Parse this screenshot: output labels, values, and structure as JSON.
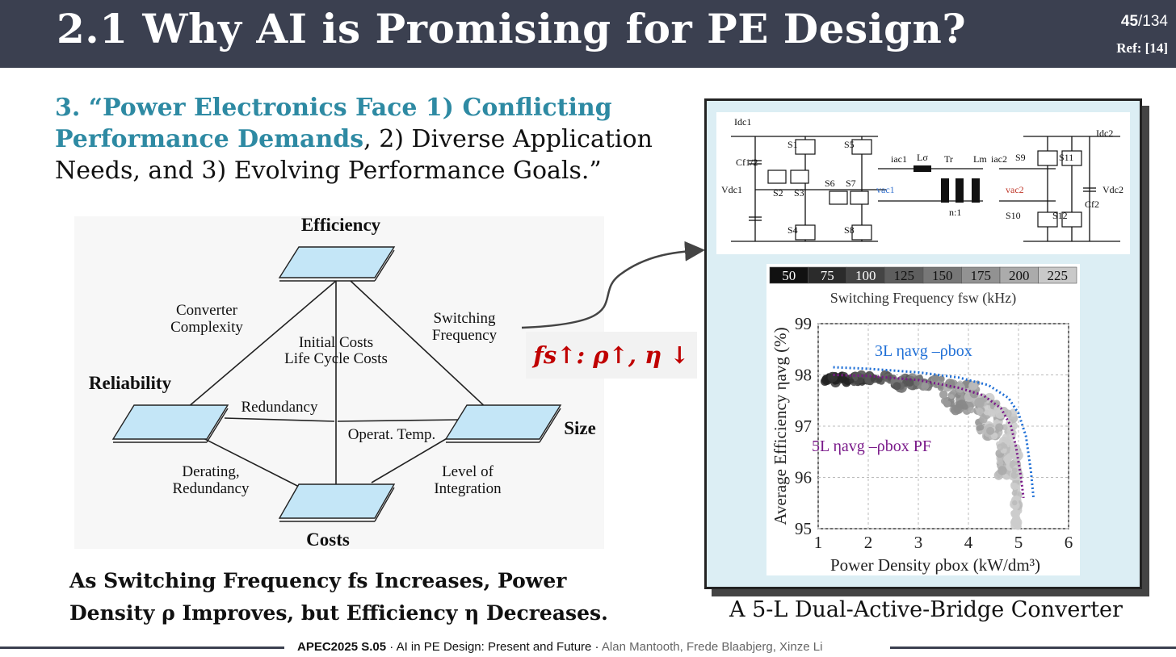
{
  "header": {
    "title": "2.1 Why AI is Promising for PE Design?",
    "page_current": "45",
    "page_total": "/134",
    "ref": "Ref: [14]"
  },
  "quote": {
    "highlight": "3. “Power Electronics Face 1) Conflicting Performance Demands",
    "rest": ", 2) Diverse Application Needs, and 3) Evolving Performance Goals.”"
  },
  "diagram": {
    "nodes": {
      "efficiency": "Efficiency",
      "reliability": "Reliability",
      "size": "Size",
      "costs": "Costs"
    },
    "edges": {
      "converter_complexity": "Converter Complexity",
      "switching_frequency": "Switching Frequency",
      "initial_costs": "Initial Costs",
      "life_cycle_costs": "Life Cycle Costs",
      "redundancy": "Redundancy",
      "operat_temp": "Operat. Temp.",
      "derating_redundancy": "Derating, Redundancy",
      "level_of_integration": "Level of Integration"
    }
  },
  "formula": "fs↑: ρ↑, η ↓",
  "conclusion": {
    "line1": "As Switching Frequency fs Increases, Power",
    "line2": "Density ρ Improves, but Efficiency η Decreases."
  },
  "circuit": {
    "labels": [
      "Idc1",
      "Cf1/2",
      "Vdc1",
      "S1",
      "S2",
      "S3",
      "S4",
      "S5",
      "S6",
      "S7",
      "iac1",
      "vac1",
      "Lσ",
      "Tr",
      "Lm",
      "n:1",
      "iac2",
      "vac2",
      "S9",
      "S10",
      "S11",
      "S12",
      "Idc2",
      "Vdc2",
      "Cf2"
    ]
  },
  "chart_data": {
    "type": "scatter",
    "colorbar": {
      "label": "Switching Frequency fsw (kHz)",
      "ticks": [
        "50",
        "75",
        "100",
        "125",
        "150",
        "175",
        "200",
        "225"
      ],
      "colors": [
        "#111111",
        "#2b2b2b",
        "#444444",
        "#5e5e5e",
        "#777777",
        "#929292",
        "#ababab",
        "#c9c9c9"
      ]
    },
    "xlabel": "Power Density ρbox (kW/dm³)",
    "ylabel": "Average Efficiency ηavg (%)",
    "xlim": [
      1,
      6
    ],
    "ylim": [
      95,
      99
    ],
    "xticks": [
      "1",
      "2",
      "3",
      "4",
      "5",
      "6"
    ],
    "yticks": [
      "95",
      "96",
      "97",
      "98",
      "99"
    ],
    "grid": true,
    "series": [
      {
        "name": "3L ηavg –ρbox",
        "style": "dotted",
        "color": "#1f6fd6",
        "x": [
          1.3,
          2.0,
          3.0,
          3.8,
          4.4,
          4.8,
          5.0,
          5.15,
          5.25,
          5.3
        ],
        "y": [
          98.15,
          98.12,
          98.05,
          97.95,
          97.8,
          97.55,
          97.25,
          96.8,
          96.1,
          95.6
        ]
      },
      {
        "name": "5L ηavg –ρbox PF",
        "style": "dotted",
        "color": "#7a1a8a",
        "x": [
          1.3,
          2.0,
          3.0,
          3.8,
          4.3,
          4.65,
          4.85,
          4.95,
          5.05,
          5.1
        ],
        "y": [
          98.0,
          97.98,
          97.9,
          97.75,
          97.6,
          97.35,
          97.0,
          96.6,
          96.0,
          95.6
        ]
      }
    ],
    "scatter_bands": [
      {
        "x0": 1.1,
        "x1": 2.5,
        "ymin": 97.85,
        "ymax": 98.0
      },
      {
        "x0": 2.5,
        "x1": 3.5,
        "ymin": 97.75,
        "ymax": 97.95
      },
      {
        "x0": 3.5,
        "x1": 4.2,
        "ymin": 97.3,
        "ymax": 97.85
      },
      {
        "x0": 4.2,
        "x1": 4.6,
        "ymin": 96.8,
        "ymax": 97.6
      },
      {
        "x0": 4.6,
        "x1": 4.9,
        "ymin": 96.0,
        "ymax": 97.35
      },
      {
        "x0": 4.9,
        "x1": 5.0,
        "ymin": 95.0,
        "ymax": 96.6
      }
    ]
  },
  "caption": "A 5-L Dual-Active-Bridge Converter",
  "footer": {
    "event": "APEC2025 S.05",
    "sep1": " · ",
    "topic": "AI in PE Design: Present and Future",
    "sep2": " · ",
    "authors": "Alan Mantooth, Frede Blaabjerg, Xinze Li"
  }
}
